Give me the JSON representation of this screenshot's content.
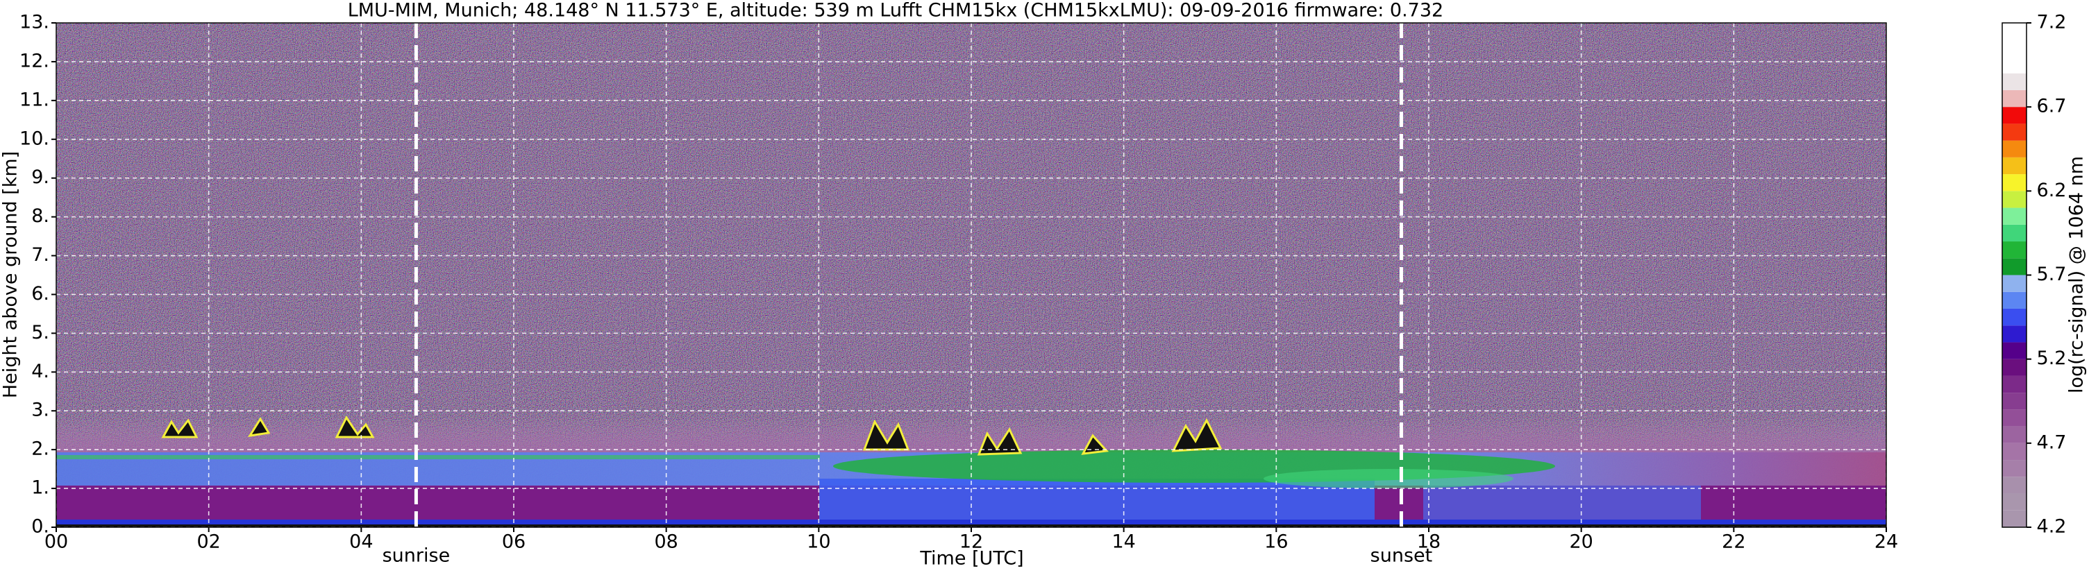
{
  "chart_data": {
    "type": "heatmap",
    "title": "LMU-MIM, Munich; 48.148° N 11.573° E, altitude: 539 m    Lufft CHM15kx (CHM15kxLMU): 09-09-2016    firmware: 0.732",
    "xlabel": "Time [UTC]",
    "ylabel": "Height above ground [km]",
    "xlim": [
      0,
      24
    ],
    "xticks": [
      {
        "value": 0,
        "label": "00"
      },
      {
        "value": 2,
        "label": "02"
      },
      {
        "value": 4,
        "label": "04"
      },
      {
        "value": 6,
        "label": "06"
      },
      {
        "value": 8,
        "label": "08"
      },
      {
        "value": 10,
        "label": "10"
      },
      {
        "value": 12,
        "label": "12"
      },
      {
        "value": 14,
        "label": "14"
      },
      {
        "value": 16,
        "label": "16"
      },
      {
        "value": 18,
        "label": "18"
      },
      {
        "value": 20,
        "label": "20"
      },
      {
        "value": 22,
        "label": "22"
      },
      {
        "value": 24,
        "label": "24"
      }
    ],
    "ylim": [
      0,
      13
    ],
    "yticks": [
      {
        "value": 0,
        "label": "0."
      },
      {
        "value": 1,
        "label": "1."
      },
      {
        "value": 2,
        "label": "2."
      },
      {
        "value": 3,
        "label": "3."
      },
      {
        "value": 4,
        "label": "4."
      },
      {
        "value": 5,
        "label": "5."
      },
      {
        "value": 6,
        "label": "6."
      },
      {
        "value": 7,
        "label": "7."
      },
      {
        "value": 8,
        "label": "8."
      },
      {
        "value": 9,
        "label": "9."
      },
      {
        "value": 10,
        "label": "10."
      },
      {
        "value": 11,
        "label": "11."
      },
      {
        "value": 12,
        "label": "12."
      },
      {
        "value": 13,
        "label": "13."
      }
    ],
    "grid": true,
    "annotations": [
      {
        "text": "sunrise",
        "x": 4.72
      },
      {
        "text": "sunset",
        "x": 17.64
      }
    ],
    "colorbar": {
      "label": "log(rc-signal) @ 1064 nm",
      "lim": [
        4.2,
        7.2
      ],
      "ticks": [
        4.2,
        4.7,
        5.2,
        5.7,
        6.2,
        6.7,
        7.2
      ],
      "levels": [
        4.2,
        4.3,
        4.4,
        4.5,
        4.6,
        4.7,
        4.8,
        4.9,
        5.0,
        5.1,
        5.2,
        5.3,
        5.4,
        5.5,
        5.6,
        5.7,
        5.8,
        5.9,
        6.0,
        6.1,
        6.2,
        6.3,
        6.4,
        6.5,
        6.6,
        6.7,
        6.8,
        6.9,
        7.0,
        7.1,
        7.2
      ],
      "colors": [
        "#a996ad",
        "#a996ad",
        "#a890ac",
        "#a67fa9",
        "#a574a7",
        "#9c64a0",
        "#934f98",
        "#873d90",
        "#7c2a89",
        "#6a0f7e",
        "#55008a",
        "#2e1bd0",
        "#3a4ef0",
        "#5c86f2",
        "#8fb2ee",
        "#119b2b",
        "#21b537",
        "#40d67a",
        "#7ef09a",
        "#c8f040",
        "#f7f32a",
        "#f5c018",
        "#f58a0f",
        "#f43a10",
        "#f20a0a",
        "#ecb8b8",
        "#ebe4e6",
        "#ffffff",
        "#ffffff",
        "#ffffff"
      ]
    }
  }
}
